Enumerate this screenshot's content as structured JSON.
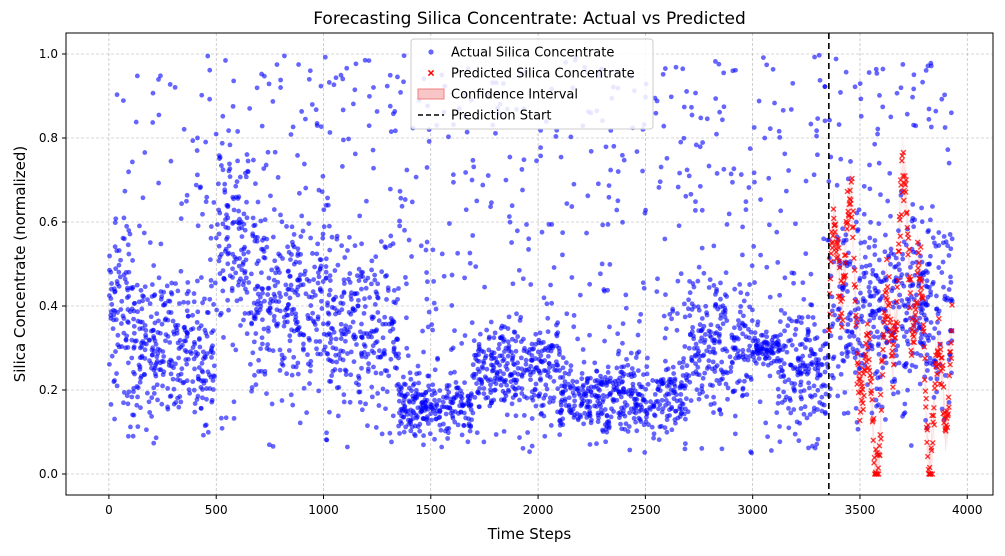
{
  "chart_data": {
    "type": "scatter",
    "title": "Forecasting Silica Concentrate: Actual vs Predicted",
    "xlabel": "Time Steps",
    "ylabel": "Silica Concentrate (normalized)",
    "xlim": [
      -200,
      4120
    ],
    "ylim": [
      -0.05,
      1.05
    ],
    "xticks": [
      0,
      500,
      1000,
      1500,
      2000,
      2500,
      3000,
      3500,
      4000
    ],
    "yticks": [
      0.0,
      0.2,
      0.4,
      0.6,
      0.8,
      1.0
    ],
    "grid": true,
    "legend_position": "top-center",
    "prediction_start": 3355,
    "colors": {
      "actual": "#0000ff",
      "predicted": "#ff0000",
      "confidence": "#f08080",
      "prediction_line": "#000000"
    },
    "series": [
      {
        "name": "Actual Silica Concentrate",
        "marker": "circle",
        "x_range": [
          0,
          3930
        ],
        "segments": [
          {
            "x": [
              0,
              100
            ],
            "center": 0.4,
            "spread": 0.3
          },
          {
            "x": [
              100,
              500
            ],
            "center": 0.3,
            "spread": 0.25
          },
          {
            "x": [
              500,
              650
            ],
            "center": 0.55,
            "spread": 0.35
          },
          {
            "x": [
              650,
              1000
            ],
            "center": 0.42,
            "spread": 0.3
          },
          {
            "x": [
              1000,
              1350
            ],
            "center": 0.35,
            "spread": 0.3
          },
          {
            "x": [
              1350,
              1700
            ],
            "center": 0.16,
            "spread": 0.1
          },
          {
            "x": [
              1700,
              2100
            ],
            "center": 0.25,
            "spread": 0.15
          },
          {
            "x": [
              2100,
              2700
            ],
            "center": 0.18,
            "spread": 0.12
          },
          {
            "x": [
              2700,
              3000
            ],
            "center": 0.3,
            "spread": 0.25
          },
          {
            "x": [
              3000,
              3120
            ],
            "center": 0.3,
            "spread": 0.05
          },
          {
            "x": [
              3120,
              3355
            ],
            "center": 0.25,
            "spread": 0.2
          },
          {
            "x": [
              3355,
              3930
            ],
            "center": 0.4,
            "spread": 0.3
          }
        ]
      },
      {
        "name": "Predicted Silica Concentrate",
        "marker": "x",
        "x_range": [
          3355,
          3930
        ]
      }
    ],
    "legend": [
      {
        "label": "Actual Silica Concentrate"
      },
      {
        "label": "Predicted Silica Concentrate"
      },
      {
        "label": "Confidence Interval"
      },
      {
        "label": "Prediction Start"
      }
    ]
  }
}
